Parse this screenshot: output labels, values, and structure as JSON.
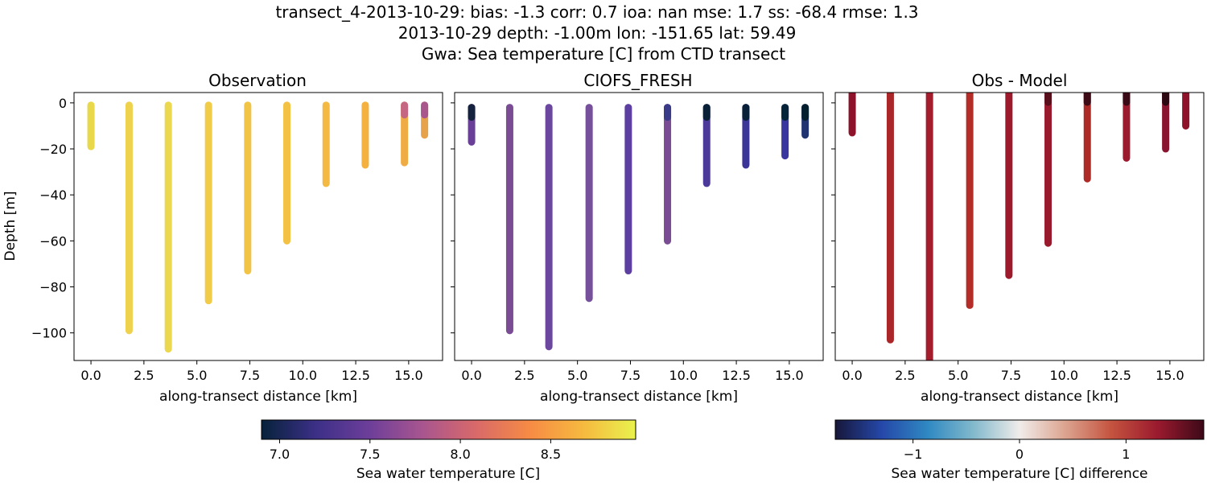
{
  "figure": {
    "title_lines": [
      "transect_4-2013-10-29: bias: -1.3  corr: 0.7  ioa: nan  mse: 1.7  ss: -68.4  rmse: 1.3",
      "2013-10-29 depth: -1.00m lon: -151.65 lat: 59.49",
      "Gwa: Sea temperature [C] from CTD transect"
    ],
    "colors": {
      "frame": "#000000",
      "background": "#ffffff"
    }
  },
  "chart_data": [
    {
      "type": "scatter",
      "title": "Observation",
      "xlabel": "along-transect distance [km]",
      "ylabel": "Depth [m]",
      "xlim": [
        -0.8,
        16.6
      ],
      "ylim": [
        -112,
        4.5
      ],
      "xticks": [
        0,
        2.5,
        5,
        7.5,
        10,
        12.5,
        15
      ],
      "xticklabels": [
        "0.0",
        "2.5",
        "5.0",
        "7.5",
        "10.0",
        "12.5",
        "15.0"
      ],
      "yticks": [
        0,
        -20,
        -40,
        -60,
        -80,
        -100
      ],
      "yticklabels": [
        "0",
        "−20",
        "−40",
        "−60",
        "−80",
        "−100"
      ],
      "colormap": "plasma-like (Sea water temperature)",
      "profiles": [
        {
          "x": 0.0,
          "top": -1,
          "bottom": -19,
          "color": "#e8d84a"
        },
        {
          "x": 1.8,
          "top": -1,
          "bottom": -99,
          "color": "#eed24e"
        },
        {
          "x": 3.65,
          "top": -1,
          "bottom": -107,
          "color": "#ecd84f"
        },
        {
          "x": 5.55,
          "top": -1,
          "bottom": -86,
          "color": "#f0cc49"
        },
        {
          "x": 7.4,
          "top": -1,
          "bottom": -73,
          "color": "#f2c446"
        },
        {
          "x": 9.25,
          "top": -1,
          "bottom": -60,
          "color": "#f3c244"
        },
        {
          "x": 11.1,
          "top": -1,
          "bottom": -35,
          "color": "#f3b942"
        },
        {
          "x": 12.95,
          "top": -1,
          "bottom": -27,
          "color": "#f4b140"
        },
        {
          "x": 14.8,
          "top": -1,
          "bottom": -26,
          "color": "#efac45",
          "top_color": "#c56782"
        },
        {
          "x": 15.75,
          "top": -1,
          "bottom": -14,
          "color": "#e7a34c",
          "top_color": "#a9568d"
        }
      ]
    },
    {
      "type": "scatter",
      "title": "CIOFS_FRESH",
      "xlabel": "along-transect distance [km]",
      "ylabel": "",
      "xlim": [
        -0.8,
        16.6
      ],
      "ylim": [
        -112,
        4.5
      ],
      "xticks": [
        0,
        2.5,
        5,
        7.5,
        10,
        12.5,
        15
      ],
      "xticklabels": [
        "0.0",
        "2.5",
        "5.0",
        "7.5",
        "10.0",
        "12.5",
        "15.0"
      ],
      "yticks": [
        0,
        -20,
        -40,
        -60,
        -80,
        -100
      ],
      "colormap": "plasma-like (Sea water temperature)",
      "profiles": [
        {
          "x": 0.0,
          "top": -2,
          "bottom": -17,
          "color": "#6a3f98",
          "top_color": "#16233e"
        },
        {
          "x": 1.8,
          "top": -2,
          "bottom": -99,
          "color": "#7a4c94"
        },
        {
          "x": 3.65,
          "top": -2,
          "bottom": -106,
          "color": "#6b479f"
        },
        {
          "x": 5.55,
          "top": -2,
          "bottom": -85,
          "color": "#76509a"
        },
        {
          "x": 7.4,
          "top": -2,
          "bottom": -73,
          "color": "#5c3fa0"
        },
        {
          "x": 9.25,
          "top": -2,
          "bottom": -60,
          "color": "#7a4c94",
          "top_color": "#3a3b88"
        },
        {
          "x": 11.1,
          "top": -2,
          "bottom": -35,
          "color": "#4c3a9b",
          "top_color": "#0a2036"
        },
        {
          "x": 12.95,
          "top": -2,
          "bottom": -27,
          "color": "#3a3596",
          "top_color": "#082038"
        },
        {
          "x": 14.8,
          "top": -2,
          "bottom": -23,
          "color": "#3a36a0",
          "top_color": "#05243a"
        },
        {
          "x": 15.75,
          "top": -2,
          "bottom": -14,
          "color": "#1f3470",
          "top_color": "#04202f"
        }
      ]
    },
    {
      "type": "scatter",
      "title": "Obs - Model",
      "xlabel": "along-transect distance [km]",
      "ylabel": "",
      "xlim": [
        -0.8,
        16.6
      ],
      "ylim": [
        -112,
        4.5
      ],
      "xticks": [
        0,
        2.5,
        5,
        7.5,
        10,
        12.5,
        15
      ],
      "xticklabels": [
        "0.0",
        "2.5",
        "5.0",
        "7.5",
        "10.0",
        "12.5",
        "15.0"
      ],
      "yticks": [
        0,
        -20,
        -40,
        -60,
        -80,
        -100
      ],
      "colormap": "balance (temperature difference)",
      "profiles": [
        {
          "x": 0.0,
          "top": 4.5,
          "bottom": -13,
          "color": "#8e1229"
        },
        {
          "x": 1.8,
          "top": 4.5,
          "bottom": -103,
          "color": "#ab2628"
        },
        {
          "x": 3.65,
          "top": 4.5,
          "bottom": -112,
          "color": "#a41d2c"
        },
        {
          "x": 5.55,
          "top": 4.5,
          "bottom": -88,
          "color": "#b42d28"
        },
        {
          "x": 7.4,
          "top": 4.5,
          "bottom": -75,
          "color": "#9c1a2c"
        },
        {
          "x": 9.25,
          "top": 4.5,
          "bottom": -61,
          "color": "#991a2c",
          "top_color": "#5a0f1c"
        },
        {
          "x": 11.1,
          "top": 4.5,
          "bottom": -33,
          "color": "#ae2a26",
          "top_color": "#3e0a16"
        },
        {
          "x": 12.95,
          "top": 4.5,
          "bottom": -24,
          "color": "#9b1a2d",
          "top_color": "#3a0a16"
        },
        {
          "x": 14.8,
          "top": 4.5,
          "bottom": -20,
          "color": "#8a1430",
          "top_color": "#2b0812"
        },
        {
          "x": 15.75,
          "top": 4.5,
          "bottom": -10,
          "color": "#8e1229"
        }
      ]
    }
  ],
  "colorbars": [
    {
      "label": "Sea water temperature [C]",
      "range": [
        6.9,
        8.97
      ],
      "ticks": [
        7.0,
        7.5,
        8.0,
        8.5
      ],
      "ticklabels": [
        "7.0",
        "7.5",
        "8.0",
        "8.5"
      ],
      "stops": [
        "#06223a",
        "#3b2f86",
        "#6c3e9a",
        "#a8558f",
        "#d8696a",
        "#f68a45",
        "#f6b83f",
        "#e9f24d"
      ]
    },
    {
      "label": "Sea water temperature [C] difference",
      "range": [
        -1.73,
        1.73
      ],
      "ticks": [
        -1,
        0,
        1
      ],
      "ticklabels": [
        "−1",
        "0",
        "1"
      ],
      "stops": [
        "#17173a",
        "#2547a8",
        "#2f88c2",
        "#82b9cc",
        "#f0ecea",
        "#dca38f",
        "#c4533f",
        "#9a1a2e",
        "#3c0918"
      ]
    }
  ]
}
